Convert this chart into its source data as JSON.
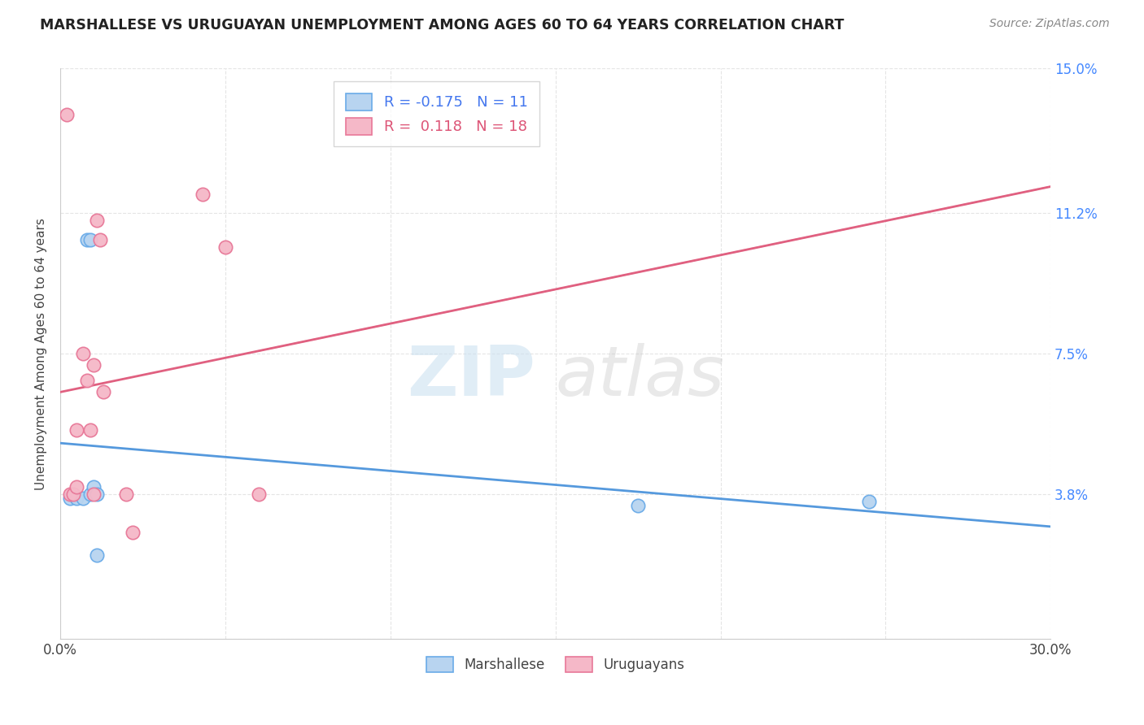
{
  "title": "MARSHALLESE VS URUGUAYAN UNEMPLOYMENT AMONG AGES 60 TO 64 YEARS CORRELATION CHART",
  "source": "Source: ZipAtlas.com",
  "ylabel": "Unemployment Among Ages 60 to 64 years",
  "xlim": [
    0,
    0.3
  ],
  "ylim": [
    0,
    0.15
  ],
  "xticks": [
    0.0,
    0.05,
    0.1,
    0.15,
    0.2,
    0.25,
    0.3
  ],
  "xticklabels": [
    "0.0%",
    "",
    "",
    "",
    "",
    "",
    "30.0%"
  ],
  "yticks": [
    0.0,
    0.038,
    0.075,
    0.112,
    0.15
  ],
  "yticklabels": [
    "",
    "3.8%",
    "7.5%",
    "11.2%",
    "15.0%"
  ],
  "marshallese_x": [
    0.003,
    0.005,
    0.007,
    0.008,
    0.009,
    0.009,
    0.01,
    0.011,
    0.011,
    0.175,
    0.245
  ],
  "marshallese_y": [
    0.037,
    0.037,
    0.037,
    0.105,
    0.105,
    0.038,
    0.04,
    0.038,
    0.022,
    0.035,
    0.036
  ],
  "uruguayan_x": [
    0.002,
    0.003,
    0.004,
    0.005,
    0.005,
    0.007,
    0.008,
    0.009,
    0.01,
    0.01,
    0.011,
    0.012,
    0.013,
    0.02,
    0.022,
    0.043,
    0.05,
    0.06
  ],
  "uruguayan_y": [
    0.138,
    0.038,
    0.038,
    0.055,
    0.04,
    0.075,
    0.068,
    0.055,
    0.072,
    0.038,
    0.11,
    0.105,
    0.065,
    0.038,
    0.028,
    0.117,
    0.103,
    0.038
  ],
  "marshallese_color": "#b8d4f0",
  "uruguayan_color": "#f5b8c8",
  "marshallese_edge_color": "#6aabe8",
  "uruguayan_edge_color": "#e87898",
  "marshallese_line_color": "#5599dd",
  "uruguayan_line_color": "#e06080",
  "R_marshallese": -0.175,
  "N_marshallese": 11,
  "R_uruguayan": 0.118,
  "N_uruguayan": 18,
  "legend_label_marshallese": "Marshallese",
  "legend_label_uruguayan": "Uruguayans",
  "watermark_zip": "ZIP",
  "watermark_atlas": "atlas",
  "background_color": "#ffffff",
  "grid_color": "#e5e5e5"
}
